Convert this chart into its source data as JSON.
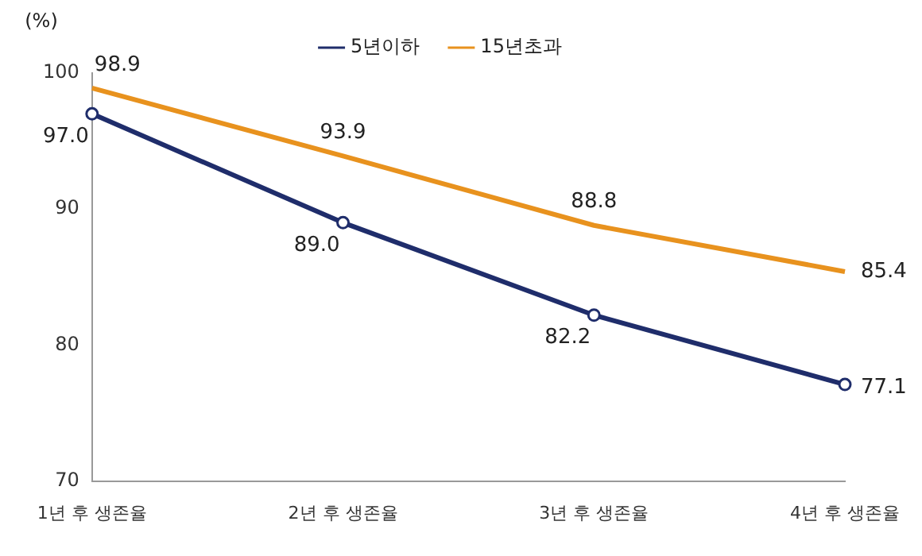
{
  "chart_data": {
    "type": "line",
    "ylabel": "(%)",
    "categories": [
      "1년 후 생존율",
      "2년 후 생존율",
      "3년 후 생존율",
      "4년 후 생존율"
    ],
    "series": [
      {
        "name": "5년이하",
        "color": "#1f2d6b",
        "marker": "circle",
        "values": [
          97.0,
          89.0,
          82.2,
          77.1
        ],
        "value_labels": [
          "97.0",
          "89.0",
          "82.2",
          "77.1"
        ]
      },
      {
        "name": "15년초과",
        "color": "#e8921e",
        "marker": "none",
        "values": [
          98.9,
          93.9,
          88.8,
          85.4
        ],
        "value_labels": [
          "98.9",
          "93.9",
          "88.8",
          "85.4"
        ]
      }
    ],
    "ylim": [
      70,
      100
    ],
    "yticks": [
      70,
      80,
      90,
      100
    ],
    "grid": false,
    "legend": "top",
    "line_style": "solid"
  }
}
